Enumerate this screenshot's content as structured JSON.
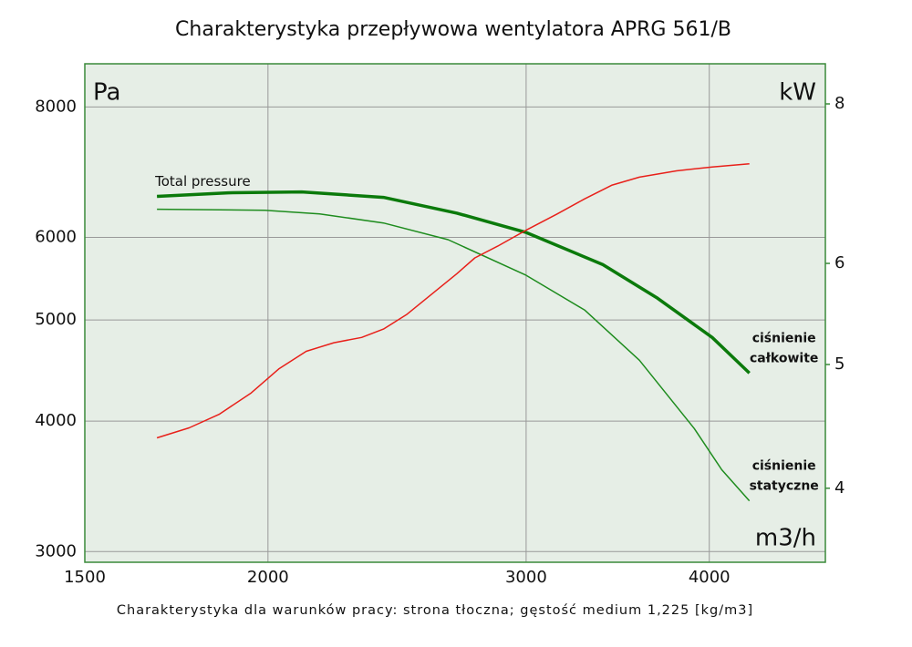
{
  "chart_data": {
    "type": "line",
    "title": "Charakterystyka przepływowa wentylatora APRG 561/B",
    "footnote": "Charakterystyka dla warunków pracy: strona tłoczna; gęstość medium 1,225 [kg/m3]",
    "y_unit": "Pa",
    "y2_unit": "kW",
    "x_unit": "m3/h",
    "xscale": "log",
    "yscale": "log",
    "y2scale": "log",
    "grid": true,
    "xlim": [
      1500,
      4800
    ],
    "xticks": [
      1500,
      2000,
      3000,
      4000
    ],
    "ylim": [
      2930,
      8800
    ],
    "yticks": [
      3000,
      4000,
      5000,
      6000,
      8000
    ],
    "y2lim": [
      3.5,
      8.6
    ],
    "y2ticks": [
      4,
      5,
      6,
      8
    ],
    "series": [
      {
        "name": "Total pressure",
        "label_lines": [
          "ciśnienie",
          "całkowite"
        ],
        "color": "#0b7a0b",
        "width": 3.5,
        "x": [
          1680,
          1879,
          2109,
          2398,
          2691,
          3000,
          3384,
          3688,
          4018,
          4260
        ],
        "values": [
          6568,
          6620,
          6633,
          6553,
          6329,
          6066,
          5650,
          5246,
          4811,
          4448
        ]
      },
      {
        "label_lines": [
          "ciśnienie",
          "statyczne"
        ],
        "color": "#1e8c1e",
        "width": 1.5,
        "x": [
          1680,
          1990,
          2169,
          2398,
          2654,
          3000,
          3288,
          3584,
          3907,
          4079,
          4260
        ],
        "values": [
          6384,
          6371,
          6320,
          6194,
          5970,
          5518,
          5113,
          4576,
          3935,
          3593,
          3355
        ]
      },
      {
        "color": "#e8201a",
        "width": 1.5,
        "axis": "y2",
        "x": [
          1680,
          1767,
          1852,
          1948,
          2034,
          2124,
          2218,
          2317,
          2398,
          2486,
          2691,
          2768,
          2869,
          3000,
          3150,
          3288,
          3434,
          3584,
          3799,
          4018,
          4260
        ],
        "values": [
          4.38,
          4.46,
          4.57,
          4.75,
          4.96,
          5.12,
          5.2,
          5.25,
          5.33,
          5.47,
          5.89,
          6.06,
          6.19,
          6.37,
          6.56,
          6.74,
          6.91,
          7.01,
          7.09,
          7.14,
          7.18
        ]
      }
    ]
  }
}
